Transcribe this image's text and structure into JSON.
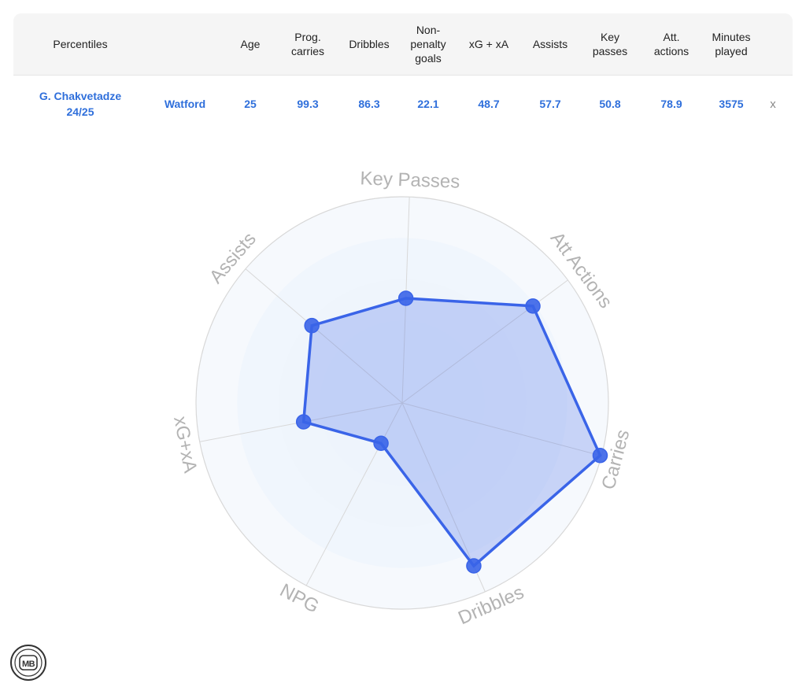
{
  "table": {
    "headers": {
      "percentiles": "Percentiles",
      "age": "Age",
      "prog_carries": "Prog. carries",
      "dribbles": "Dribbles",
      "npg": "Non-penalty goals",
      "xgxa": "xG + xA",
      "assists": "Assists",
      "key_passes": "Key passes",
      "att_actions": "Att. actions",
      "minutes": "Minutes played"
    },
    "row": {
      "player": "G. Chakvetadze",
      "season": "24/25",
      "team": "Watford",
      "age": "25",
      "prog_carries": "99.3",
      "dribbles": "86.3",
      "npg": "22.1",
      "xgxa": "48.7",
      "assists": "57.7",
      "key_passes": "50.8",
      "att_actions": "78.9",
      "minutes": "3575",
      "remove_label": "x"
    }
  },
  "chart_data": {
    "type": "radar",
    "axes": [
      "Key Passes",
      "Att Actions",
      "Carries",
      "Dribbles",
      "NPG",
      "xG+xA",
      "Assists"
    ],
    "values": [
      50.8,
      78.9,
      99.3,
      86.3,
      22.1,
      48.7,
      57.7
    ],
    "range": [
      0,
      100
    ],
    "colors": {
      "line": "#3a64e8",
      "fill": "#3a64e8",
      "grid": "#d8d8d8",
      "ring": "#eef4fc",
      "label": "#b3b3b3"
    }
  },
  "branding": {
    "logo_text": "MB"
  }
}
